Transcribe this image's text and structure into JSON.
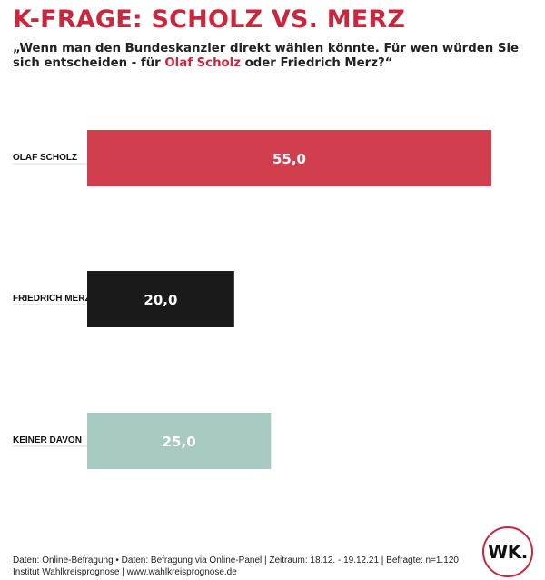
{
  "title": "K-FRAGE: SCHOLZ VS. MERZ",
  "subtitle": {
    "part1": "„Wenn man den Bundeskanzler direkt wählen könnte. Für wen würden Sie sich entscheiden - für ",
    "highlight": "Olaf Scholz",
    "part2": " oder Friedrich Merz?“"
  },
  "colors": {
    "accent": "#c8273d",
    "bar_scholz": "#d13e4e",
    "bar_merz": "#1a1a1a",
    "bar_keiner": "#a6c9c2"
  },
  "chart_data": {
    "type": "bar",
    "orientation": "horizontal",
    "categories": [
      "OLAF SCHOLZ",
      "FRIEDRICH MERZ",
      "KEINER DAVON"
    ],
    "values": [
      55.0,
      20.0,
      25.0
    ],
    "value_labels": [
      "55,0",
      "20,0",
      "25,0"
    ],
    "bar_colors": [
      "#d13e4e",
      "#1a1a1a",
      "#a6c9c2"
    ],
    "xlim": [
      0,
      55
    ],
    "grid": false,
    "legend": false
  },
  "footer": {
    "line1": "Daten: Online-Befragung • Daten: Befragung via Online-Panel | Zeitraum: 18.12. - 19.12.21 | Befragte: n=1.120",
    "line2": "Institut Wahlkreisprognose | www.wahlkreisprognose.de"
  },
  "logo": {
    "text": "WK."
  }
}
